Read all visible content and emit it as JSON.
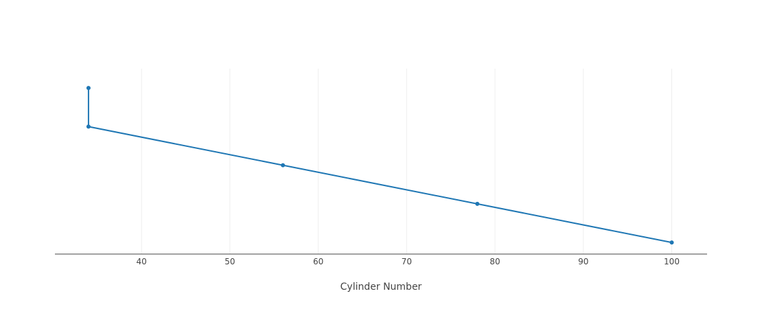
{
  "chart_data": {
    "type": "line",
    "title": "",
    "xlabel": "Cylinder Number",
    "ylabel": "",
    "xlim": [
      30.2,
      104
    ],
    "ylim": [
      -0.3,
      4.5
    ],
    "xticks": [
      40,
      50,
      60,
      70,
      80,
      90,
      100
    ],
    "grid": {
      "x": true,
      "y": false
    },
    "y_axis_visible": false,
    "series": [
      {
        "x": [
          34,
          34,
          56,
          78,
          100
        ],
        "y": [
          4,
          3,
          2,
          1,
          0
        ],
        "color": "#1f77b4",
        "mode": "lines+markers"
      }
    ]
  }
}
